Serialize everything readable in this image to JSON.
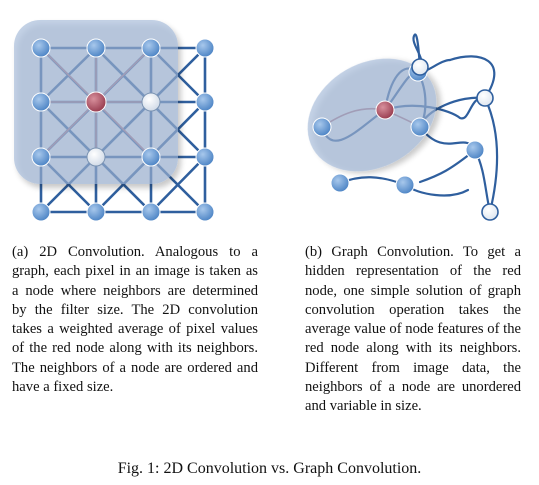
{
  "figure_a": {
    "caption": "(a) 2D Convolution. Analogous to a graph, each pixel in an image is taken as a node where neighbors are determined by the filter size. The 2D convolution takes a weighted average of pixel values of the red node along with its neighbors. The neighbors of a node are ordered and have a fixed size."
  },
  "figure_b": {
    "caption": "(b) Graph Convolution. To get a hidden representation of the red node, one simple solution of graph convolution operation takes the average value of node features of the red node along with its neighbors. Different from image data, the neighbors of a node are unordered and variable in size."
  },
  "figure_caption": "Fig. 1: 2D Convolution vs. Graph Convolution.",
  "colors": {
    "node_blue": "#6d9fd4",
    "node_red": "#b25a6a",
    "edge_blue": "#2f5f9e",
    "edge_red": "#b87888",
    "filter_region": "#9fb6d6"
  }
}
